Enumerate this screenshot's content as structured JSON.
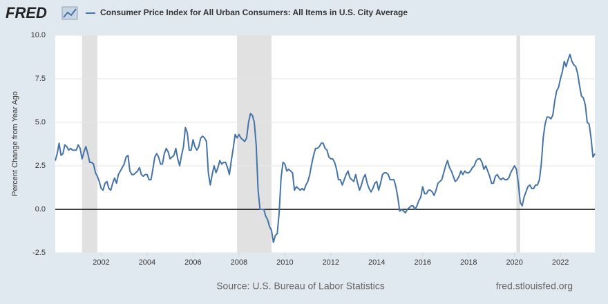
{
  "chart_data": {
    "type": "line",
    "logo": "FRED",
    "y_label": "Percent Change from Year Ago",
    "source": "Source: U.S. Bureau of Labor Statistics",
    "site": "fred.stlouisfed.org",
    "xlim": [
      "2000-01",
      "2023-07"
    ],
    "xticks": [
      {
        "value": "2002-01",
        "label": "2002"
      },
      {
        "value": "2004-01",
        "label": "2004"
      },
      {
        "value": "2006-01",
        "label": "2006"
      },
      {
        "value": "2008-01",
        "label": "2008"
      },
      {
        "value": "2010-01",
        "label": "2010"
      },
      {
        "value": "2012-01",
        "label": "2012"
      },
      {
        "value": "2014-01",
        "label": "2014"
      },
      {
        "value": "2016-01",
        "label": "2016"
      },
      {
        "value": "2018-01",
        "label": "2018"
      },
      {
        "value": "2020-01",
        "label": "2020"
      },
      {
        "value": "2022-01",
        "label": "2022"
      }
    ],
    "ylim": [
      -2.5,
      10
    ],
    "yticks": [
      {
        "value": -2.5,
        "label": "-2.5"
      },
      {
        "value": 0,
        "label": "0.0"
      },
      2.5,
      {
        "value": 5,
        "label": "5.0"
      },
      7.5,
      {
        "value": 10,
        "label": "10.0"
      }
    ],
    "grid": true,
    "zero_line": true,
    "recessions": [
      [
        "2001-03",
        "2001-11"
      ],
      [
        "2007-12",
        "2009-06"
      ],
      [
        "2020-02",
        "2020-04"
      ]
    ],
    "x": [
      "2000-01",
      "2000-02",
      "2000-03",
      "2000-04",
      "2000-05",
      "2000-06",
      "2000-07",
      "2000-08",
      "2000-09",
      "2000-10",
      "2000-11",
      "2000-12",
      "2001-01",
      "2001-02",
      "2001-03",
      "2001-04",
      "2001-05",
      "2001-06",
      "2001-07",
      "2001-08",
      "2001-09",
      "2001-10",
      "2001-11",
      "2001-12",
      "2002-01",
      "2002-02",
      "2002-03",
      "2002-04",
      "2002-05",
      "2002-06",
      "2002-07",
      "2002-08",
      "2002-09",
      "2002-10",
      "2002-11",
      "2002-12",
      "2003-01",
      "2003-02",
      "2003-03",
      "2003-04",
      "2003-05",
      "2003-06",
      "2003-07",
      "2003-08",
      "2003-09",
      "2003-10",
      "2003-11",
      "2003-12",
      "2004-01",
      "2004-02",
      "2004-03",
      "2004-04",
      "2004-05",
      "2004-06",
      "2004-07",
      "2004-08",
      "2004-09",
      "2004-10",
      "2004-11",
      "2004-12",
      "2005-01",
      "2005-02",
      "2005-03",
      "2005-04",
      "2005-05",
      "2005-06",
      "2005-07",
      "2005-08",
      "2005-09",
      "2005-10",
      "2005-11",
      "2005-12",
      "2006-01",
      "2006-02",
      "2006-03",
      "2006-04",
      "2006-05",
      "2006-06",
      "2006-07",
      "2006-08",
      "2006-09",
      "2006-10",
      "2006-11",
      "2006-12",
      "2007-01",
      "2007-02",
      "2007-03",
      "2007-04",
      "2007-05",
      "2007-06",
      "2007-07",
      "2007-08",
      "2007-09",
      "2007-10",
      "2007-11",
      "2007-12",
      "2008-01",
      "2008-02",
      "2008-03",
      "2008-04",
      "2008-05",
      "2008-06",
      "2008-07",
      "2008-08",
      "2008-09",
      "2008-10",
      "2008-11",
      "2008-12",
      "2009-01",
      "2009-02",
      "2009-03",
      "2009-04",
      "2009-05",
      "2009-06",
      "2009-07",
      "2009-08",
      "2009-09",
      "2009-10",
      "2009-11",
      "2009-12",
      "2010-01",
      "2010-02",
      "2010-03",
      "2010-04",
      "2010-05",
      "2010-06",
      "2010-07",
      "2010-08",
      "2010-09",
      "2010-10",
      "2010-11",
      "2010-12",
      "2011-01",
      "2011-02",
      "2011-03",
      "2011-04",
      "2011-05",
      "2011-06",
      "2011-07",
      "2011-08",
      "2011-09",
      "2011-10",
      "2011-11",
      "2011-12",
      "2012-01",
      "2012-02",
      "2012-03",
      "2012-04",
      "2012-05",
      "2012-06",
      "2012-07",
      "2012-08",
      "2012-09",
      "2012-10",
      "2012-11",
      "2012-12",
      "2013-01",
      "2013-02",
      "2013-03",
      "2013-04",
      "2013-05",
      "2013-06",
      "2013-07",
      "2013-08",
      "2013-09",
      "2013-10",
      "2013-11",
      "2013-12",
      "2014-01",
      "2014-02",
      "2014-03",
      "2014-04",
      "2014-05",
      "2014-06",
      "2014-07",
      "2014-08",
      "2014-09",
      "2014-10",
      "2014-11",
      "2014-12",
      "2015-01",
      "2015-02",
      "2015-03",
      "2015-04",
      "2015-05",
      "2015-06",
      "2015-07",
      "2015-08",
      "2015-09",
      "2015-10",
      "2015-11",
      "2015-12",
      "2016-01",
      "2016-02",
      "2016-03",
      "2016-04",
      "2016-05",
      "2016-06",
      "2016-07",
      "2016-08",
      "2016-09",
      "2016-10",
      "2016-11",
      "2016-12",
      "2017-01",
      "2017-02",
      "2017-03",
      "2017-04",
      "2017-05",
      "2017-06",
      "2017-07",
      "2017-08",
      "2017-09",
      "2017-10",
      "2017-11",
      "2017-12",
      "2018-01",
      "2018-02",
      "2018-03",
      "2018-04",
      "2018-05",
      "2018-06",
      "2018-07",
      "2018-08",
      "2018-09",
      "2018-10",
      "2018-11",
      "2018-12",
      "2019-01",
      "2019-02",
      "2019-03",
      "2019-04",
      "2019-05",
      "2019-06",
      "2019-07",
      "2019-08",
      "2019-09",
      "2019-10",
      "2019-11",
      "2019-12",
      "2020-01",
      "2020-02",
      "2020-03",
      "2020-04",
      "2020-05",
      "2020-06",
      "2020-07",
      "2020-08",
      "2020-09",
      "2020-10",
      "2020-11",
      "2020-12",
      "2021-01",
      "2021-02",
      "2021-03",
      "2021-04",
      "2021-05",
      "2021-06",
      "2021-07",
      "2021-08",
      "2021-09",
      "2021-10",
      "2021-11",
      "2021-12",
      "2022-01",
      "2022-02",
      "2022-03",
      "2022-04",
      "2022-05",
      "2022-06",
      "2022-07",
      "2022-08",
      "2022-09",
      "2022-10",
      "2022-11",
      "2022-12",
      "2023-01",
      "2023-02",
      "2023-03",
      "2023-04",
      "2023-05",
      "2023-06",
      "2023-07"
    ],
    "series": [
      {
        "name": "Consumer Price Index for All Urban Consumers: All Items in U.S. City Average",
        "color": "#4572a7",
        "values": [
          2.8,
          3.2,
          3.8,
          3.1,
          3.2,
          3.7,
          3.6,
          3.4,
          3.5,
          3.4,
          3.4,
          3.4,
          3.7,
          3.5,
          2.9,
          3.3,
          3.6,
          3.2,
          2.7,
          2.7,
          2.6,
          2.1,
          1.9,
          1.6,
          1.2,
          1.1,
          1.5,
          1.6,
          1.2,
          1.1,
          1.5,
          1.8,
          1.5,
          2.0,
          2.2,
          2.4,
          2.6,
          3.0,
          3.1,
          2.2,
          2.0,
          2.0,
          2.1,
          2.2,
          2.4,
          2.0,
          1.9,
          2.0,
          2.0,
          1.7,
          1.7,
          2.3,
          3.0,
          3.2,
          3.0,
          2.6,
          2.6,
          3.2,
          3.5,
          3.3,
          2.9,
          3.0,
          3.1,
          3.5,
          2.9,
          2.5,
          3.1,
          3.6,
          4.7,
          4.4,
          3.4,
          3.4,
          4.0,
          3.6,
          3.4,
          3.6,
          4.1,
          4.2,
          4.1,
          3.9,
          2.1,
          1.4,
          2.0,
          2.5,
          2.1,
          2.4,
          2.8,
          2.6,
          2.7,
          2.7,
          2.4,
          2.0,
          2.8,
          3.5,
          4.3,
          4.1,
          4.3,
          4.1,
          4.0,
          3.9,
          4.1,
          5.0,
          5.5,
          5.4,
          5.0,
          3.7,
          1.1,
          0.0,
          0.0,
          0.0,
          -0.4,
          -0.6,
          -1.0,
          -1.2,
          -1.9,
          -1.5,
          -1.4,
          -0.2,
          1.8,
          2.7,
          2.6,
          2.2,
          2.3,
          2.2,
          2.1,
          1.1,
          1.3,
          1.2,
          1.1,
          1.2,
          1.1,
          1.4,
          1.6,
          2.0,
          2.6,
          3.1,
          3.5,
          3.5,
          3.6,
          3.8,
          3.8,
          3.5,
          3.4,
          3.0,
          2.9,
          2.9,
          2.7,
          2.3,
          1.7,
          1.7,
          1.4,
          1.7,
          2.0,
          2.2,
          1.8,
          1.7,
          1.6,
          2.0,
          1.5,
          1.1,
          1.4,
          1.8,
          2.0,
          1.5,
          1.2,
          1.0,
          1.2,
          1.5,
          1.6,
          1.1,
          1.5,
          2.0,
          2.1,
          2.1,
          2.0,
          1.7,
          1.7,
          1.7,
          1.3,
          0.7,
          -0.1,
          0.0,
          -0.1,
          -0.2,
          0.0,
          0.1,
          0.2,
          0.2,
          0.0,
          0.2,
          0.5,
          0.7,
          1.3,
          0.9,
          0.9,
          1.1,
          1.1,
          1.0,
          0.8,
          1.1,
          1.5,
          1.6,
          1.7,
          2.1,
          2.5,
          2.8,
          2.4,
          2.2,
          1.9,
          1.6,
          1.7,
          1.9,
          2.2,
          2.0,
          2.2,
          2.1,
          2.1,
          2.2,
          2.4,
          2.5,
          2.8,
          2.9,
          2.9,
          2.7,
          2.3,
          2.5,
          2.2,
          1.9,
          1.5,
          1.5,
          1.9,
          2.0,
          1.8,
          1.7,
          1.8,
          1.7,
          1.7,
          1.8,
          2.1,
          2.3,
          2.5,
          2.3,
          1.5,
          0.4,
          0.2,
          0.7,
          1.0,
          1.3,
          1.4,
          1.2,
          1.2,
          1.4,
          1.4,
          1.7,
          2.6,
          4.1,
          4.9,
          5.3,
          5.3,
          5.2,
          5.4,
          6.2,
          6.8,
          7.0,
          7.5,
          7.9,
          8.5,
          8.2,
          8.6,
          8.9,
          8.5,
          8.3,
          8.2,
          7.8,
          7.1,
          6.5,
          6.4,
          6.0,
          5.0,
          4.9,
          4.1,
          3.0,
          3.2
        ]
      }
    ]
  }
}
